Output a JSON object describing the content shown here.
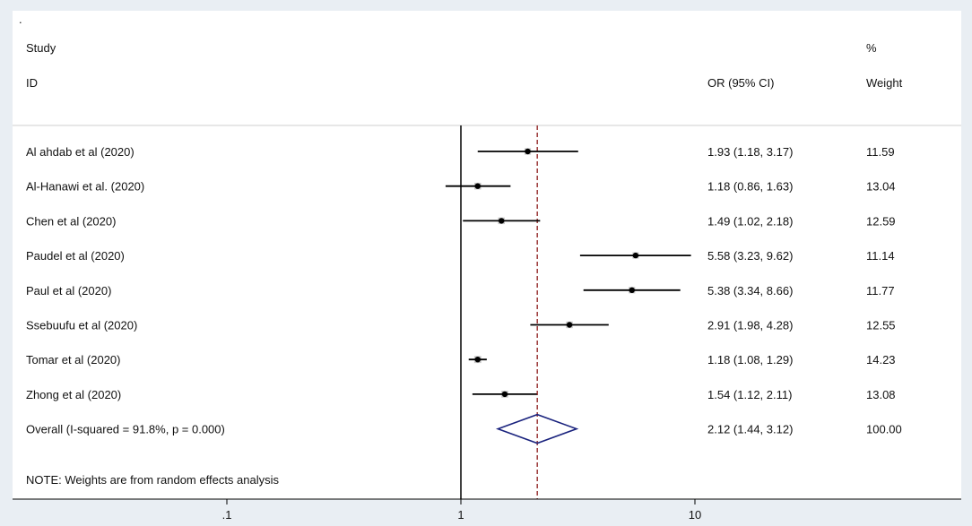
{
  "chart_data": {
    "type": "forest",
    "header": {
      "dot": ".",
      "study": "Study",
      "id": "ID",
      "or_ci": "OR (95% CI)",
      "pct": "%",
      "weight": "Weight"
    },
    "x_scale": "log",
    "xlim": [
      0.06,
      30
    ],
    "null_line": 1,
    "pooled_line": 2.12,
    "x_ticks": [
      {
        "value": 0.1,
        "label": ".1"
      },
      {
        "value": 1,
        "label": "1"
      },
      {
        "value": 10,
        "label": "10"
      }
    ],
    "studies": [
      {
        "name": "Al ahdab et al (2020)",
        "or": 1.93,
        "lower": 1.18,
        "upper": 3.17,
        "or_ci_text": "1.93 (1.18, 3.17)",
        "weight": "11.59"
      },
      {
        "name": "Al-Hanawi et al. (2020)",
        "or": 1.18,
        "lower": 0.86,
        "upper": 1.63,
        "or_ci_text": "1.18 (0.86, 1.63)",
        "weight": "13.04"
      },
      {
        "name": "Chen et al (2020)",
        "or": 1.49,
        "lower": 1.02,
        "upper": 2.18,
        "or_ci_text": "1.49 (1.02, 2.18)",
        "weight": "12.59"
      },
      {
        "name": "Paudel et al (2020)",
        "or": 5.58,
        "lower": 3.23,
        "upper": 9.62,
        "or_ci_text": "5.58 (3.23, 9.62)",
        "weight": "11.14"
      },
      {
        "name": "Paul et al (2020)",
        "or": 5.38,
        "lower": 3.34,
        "upper": 8.66,
        "or_ci_text": "5.38 (3.34, 8.66)",
        "weight": "11.77"
      },
      {
        "name": "Ssebuufu et al (2020)",
        "or": 2.91,
        "lower": 1.98,
        "upper": 4.28,
        "or_ci_text": "2.91 (1.98, 4.28)",
        "weight": "12.55"
      },
      {
        "name": "Tomar et al (2020)",
        "or": 1.18,
        "lower": 1.08,
        "upper": 1.29,
        "or_ci_text": "1.18 (1.08, 1.29)",
        "weight": "14.23"
      },
      {
        "name": "Zhong et al (2020)",
        "or": 1.54,
        "lower": 1.12,
        "upper": 2.11,
        "or_ci_text": "1.54 (1.12, 2.11)",
        "weight": "13.08"
      }
    ],
    "overall": {
      "name": "Overall  (I-squared = 91.8%, p = 0.000)",
      "or": 2.12,
      "lower": 1.44,
      "upper": 3.12,
      "or_ci_text": "2.12 (1.44, 3.12)",
      "weight": "100.00"
    },
    "note": "NOTE: Weights are from random effects analysis",
    "colors": {
      "marks": "#000000",
      "weight_box": "#c8c8c8",
      "diamond": "#1a237e",
      "pooled_line": "#8b1a1a",
      "page_bg": "#e9eef3",
      "plot_bg": "#ffffff"
    }
  }
}
